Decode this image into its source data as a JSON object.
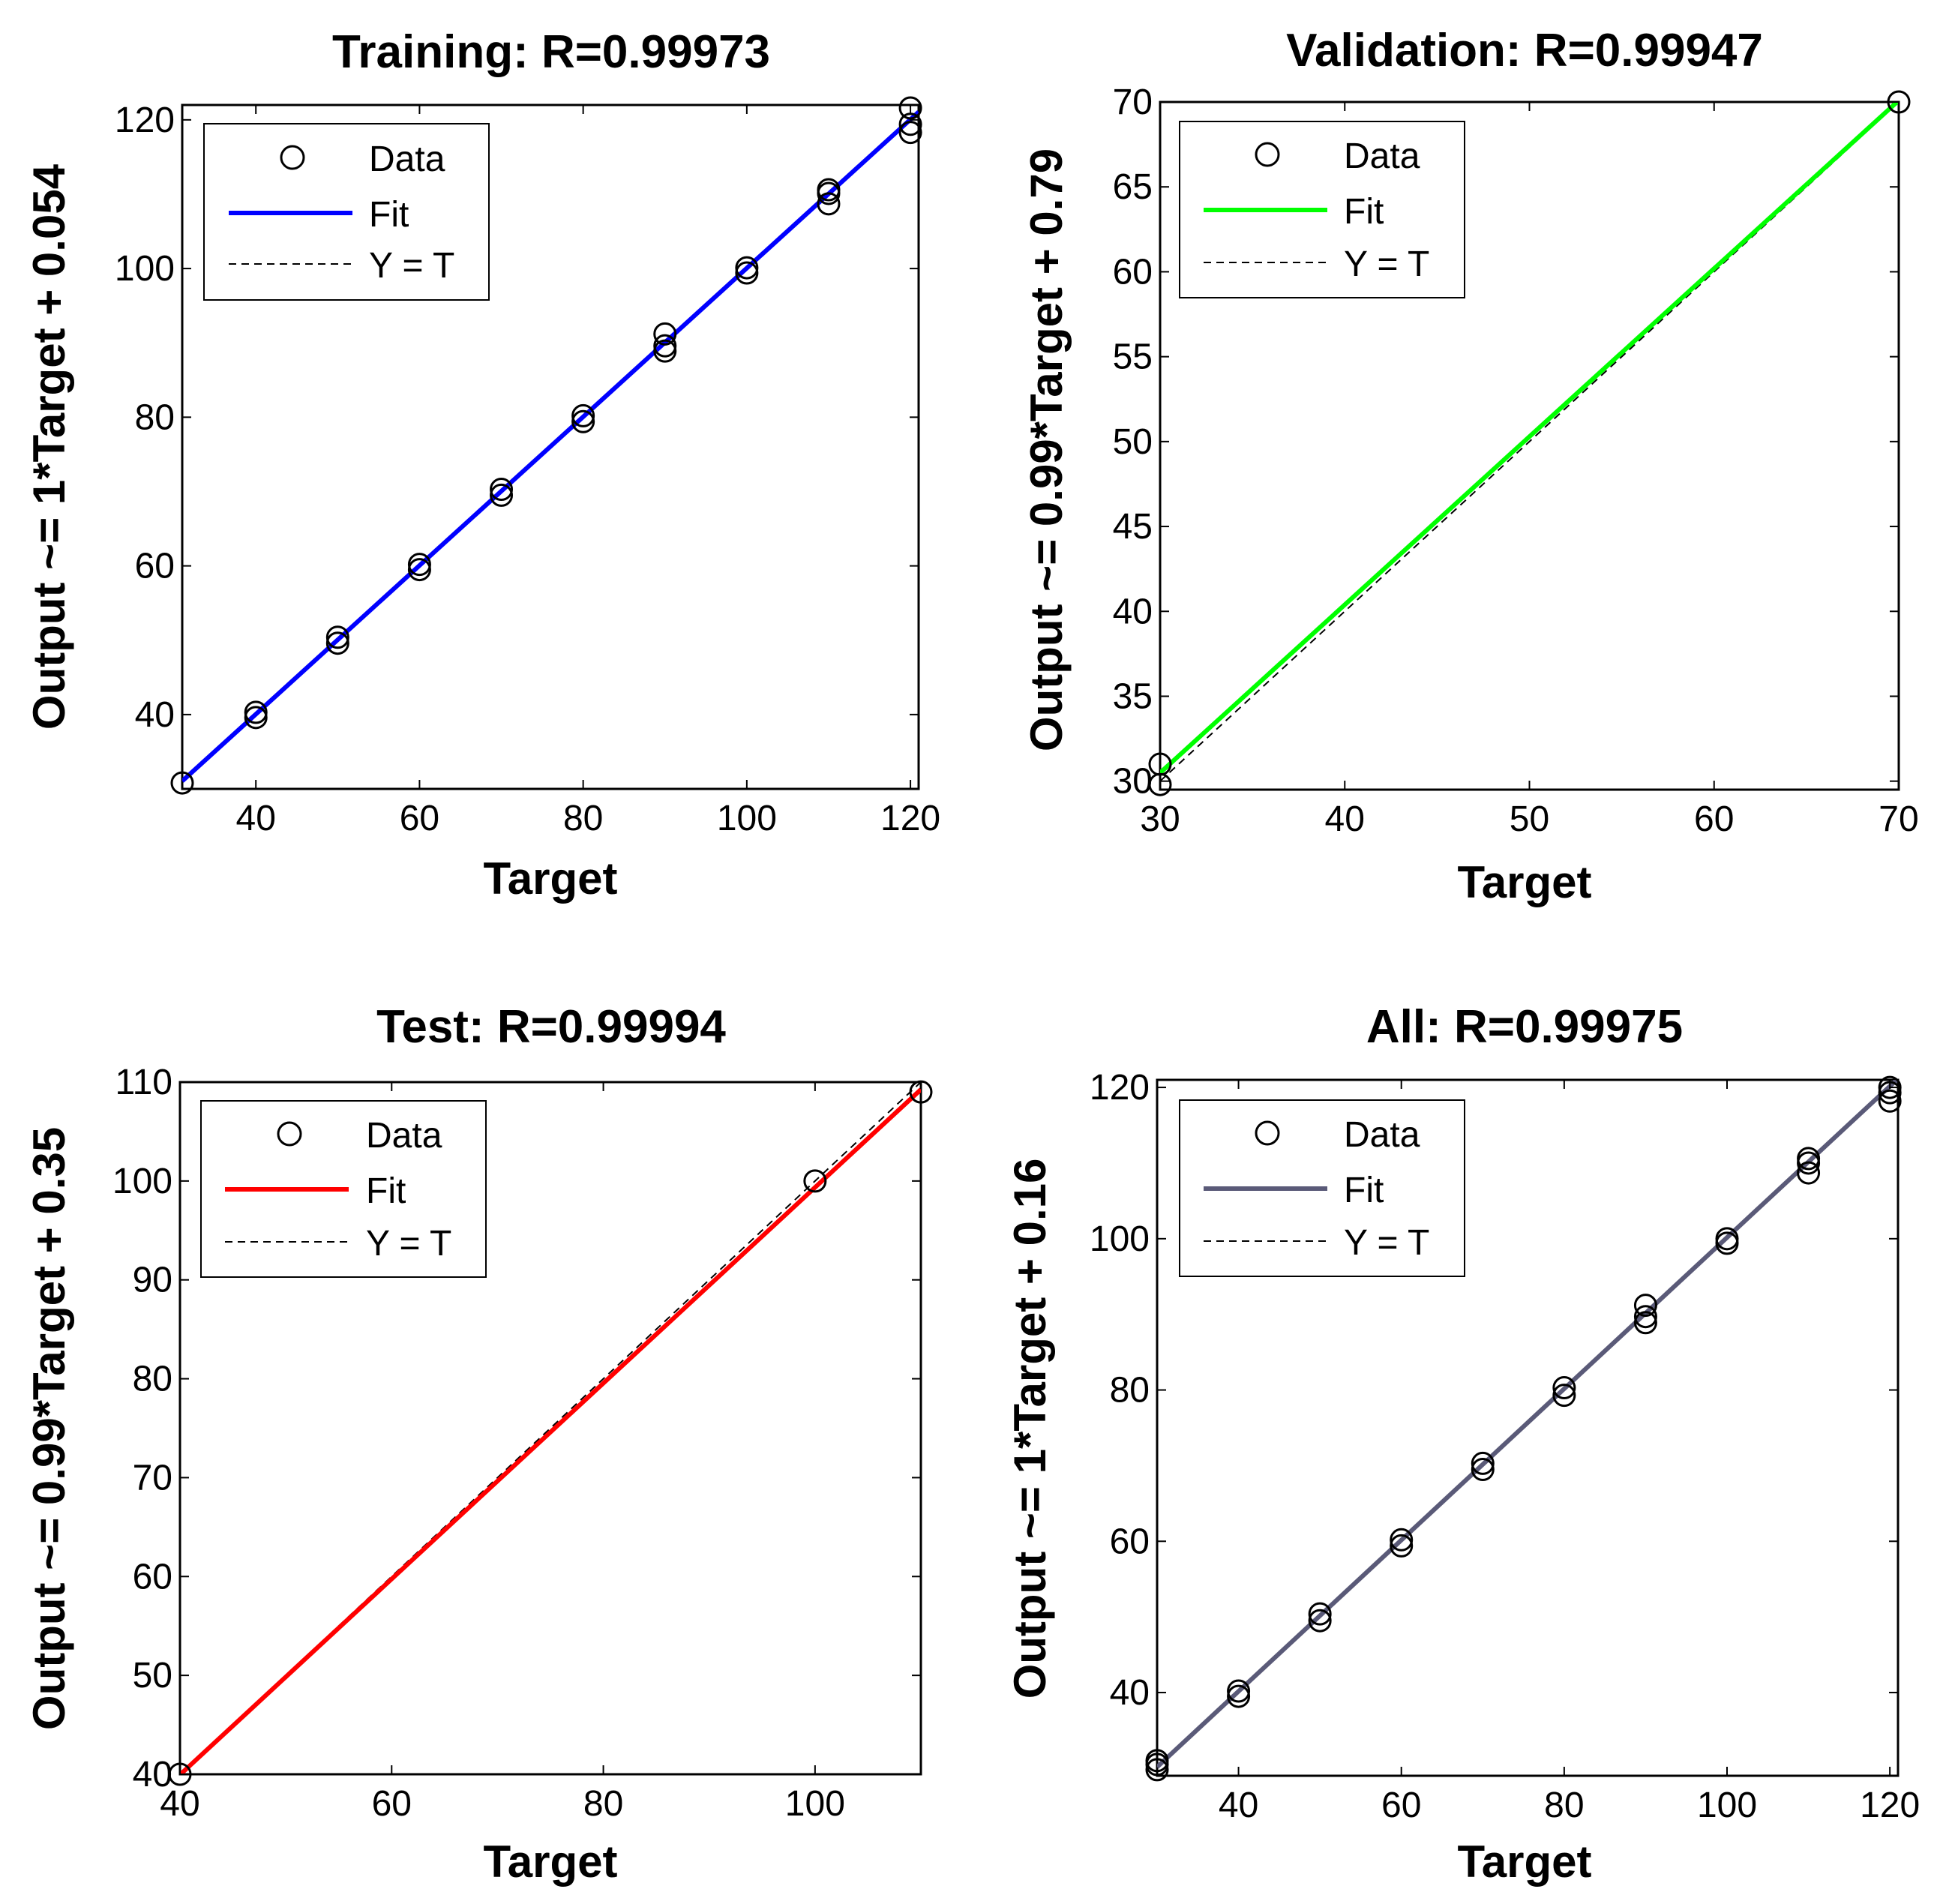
{
  "chart_data": [
    {
      "type": "scatter",
      "title": "Training: R=0.99973",
      "xlabel": "Target",
      "ylabel": "Output ~= 1*Target + 0.054",
      "xlim": [
        31,
        121
      ],
      "ylim": [
        30,
        122
      ],
      "xticks": [
        40,
        60,
        80,
        100,
        120
      ],
      "yticks": [
        40,
        60,
        80,
        100,
        120
      ],
      "x_tick_labels": [
        "40",
        "60",
        "80",
        "100",
        "120"
      ],
      "y_tick_labels": [
        "40",
        "60",
        "80",
        "100",
        "120"
      ],
      "fit": {
        "slope": 1,
        "intercept": 0.054,
        "color": "#0000ff"
      },
      "reference_line": {
        "label": "Y = T"
      },
      "legend": [
        "Data",
        "Fit",
        "Y = T"
      ],
      "legend_position": "top-left",
      "points": [
        [
          31,
          30.8
        ],
        [
          40,
          39.6
        ],
        [
          40,
          40.3
        ],
        [
          50,
          49.6
        ],
        [
          50,
          50.4
        ],
        [
          60,
          59.5
        ],
        [
          60,
          60.2
        ],
        [
          70,
          69.5
        ],
        [
          70,
          70.3
        ],
        [
          80,
          79.4
        ],
        [
          80,
          80.2
        ],
        [
          90,
          88.9
        ],
        [
          90,
          89.6
        ],
        [
          90,
          91.2
        ],
        [
          100,
          99.4
        ],
        [
          100,
          100.1
        ],
        [
          110,
          108.7
        ],
        [
          110,
          110.1
        ],
        [
          110,
          110.6
        ],
        [
          120,
          118.3
        ],
        [
          120,
          119.4
        ],
        [
          120,
          121.6
        ]
      ]
    },
    {
      "type": "scatter",
      "title": "Validation: R=0.99947",
      "xlabel": "Target",
      "ylabel": "Output ~= 0.99*Target + 0.79",
      "xlim": [
        30,
        70
      ],
      "ylim": [
        29.5,
        70
      ],
      "xticks": [
        30,
        40,
        50,
        60,
        70
      ],
      "yticks": [
        30,
        35,
        40,
        45,
        50,
        55,
        60,
        65,
        70
      ],
      "x_tick_labels": [
        "30",
        "40",
        "50",
        "60",
        "70"
      ],
      "y_tick_labels": [
        "30",
        "35",
        "40",
        "45",
        "50",
        "55",
        "60",
        "65",
        "70"
      ],
      "fit": {
        "slope": 0.99,
        "intercept": 0.79,
        "color": "#00ff00"
      },
      "reference_line": {
        "label": "Y = T"
      },
      "legend": [
        "Data",
        "Fit",
        "Y = T"
      ],
      "legend_position": "top-left",
      "points": [
        [
          30,
          31
        ],
        [
          30,
          29.8
        ],
        [
          70,
          70
        ]
      ]
    },
    {
      "type": "scatter",
      "title": "Test: R=0.99994",
      "xlabel": "Target",
      "ylabel": "Output ~= 0.99*Target + 0.35",
      "xlim": [
        40,
        110
      ],
      "ylim": [
        40,
        110
      ],
      "xticks": [
        40,
        60,
        80,
        100
      ],
      "yticks": [
        40,
        50,
        60,
        70,
        80,
        90,
        100,
        110
      ],
      "x_tick_labels": [
        "40",
        "60",
        "80",
        "100"
      ],
      "y_tick_labels": [
        "40",
        "50",
        "60",
        "70",
        "80",
        "90",
        "100",
        "110"
      ],
      "fit": {
        "slope": 0.99,
        "intercept": 0.35,
        "color": "#ff0000"
      },
      "reference_line": {
        "label": "Y = T"
      },
      "legend": [
        "Data",
        "Fit",
        "Y = T"
      ],
      "legend_position": "top-left",
      "points": [
        [
          40,
          40
        ],
        [
          100,
          100
        ],
        [
          110,
          109
        ]
      ]
    },
    {
      "type": "scatter",
      "title": "All: R=0.99975",
      "xlabel": "Target",
      "ylabel": "Output ~= 1*Target + 0.16",
      "xlim": [
        30,
        121
      ],
      "ylim": [
        29,
        121
      ],
      "xticks": [
        40,
        60,
        80,
        100,
        120
      ],
      "yticks": [
        40,
        60,
        80,
        100,
        120
      ],
      "x_tick_labels": [
        "40",
        "60",
        "80",
        "100",
        "120"
      ],
      "y_tick_labels": [
        "40",
        "60",
        "80",
        "100",
        "120"
      ],
      "fit": {
        "slope": 1,
        "intercept": 0.16,
        "color": "#5a5a78"
      },
      "reference_line": {
        "label": "Y = T"
      },
      "legend": [
        "Data",
        "Fit",
        "Y = T"
      ],
      "legend_position": "top-left",
      "points": [
        [
          30,
          29.8
        ],
        [
          30,
          30.5
        ],
        [
          30,
          31
        ],
        [
          40,
          39.5
        ],
        [
          40,
          40.2
        ],
        [
          50,
          49.5
        ],
        [
          50,
          50.4
        ],
        [
          60,
          59.4
        ],
        [
          60,
          60.2
        ],
        [
          70,
          69.5
        ],
        [
          70,
          70.3
        ],
        [
          80,
          79.3
        ],
        [
          80,
          80.3
        ],
        [
          90,
          88.9
        ],
        [
          90,
          89.7
        ],
        [
          90,
          91.2
        ],
        [
          100,
          99.4
        ],
        [
          100,
          100
        ],
        [
          110,
          108.7
        ],
        [
          110,
          110
        ],
        [
          110,
          110.6
        ],
        [
          120,
          118.2
        ],
        [
          120,
          119.3
        ],
        [
          120,
          120
        ]
      ]
    }
  ]
}
